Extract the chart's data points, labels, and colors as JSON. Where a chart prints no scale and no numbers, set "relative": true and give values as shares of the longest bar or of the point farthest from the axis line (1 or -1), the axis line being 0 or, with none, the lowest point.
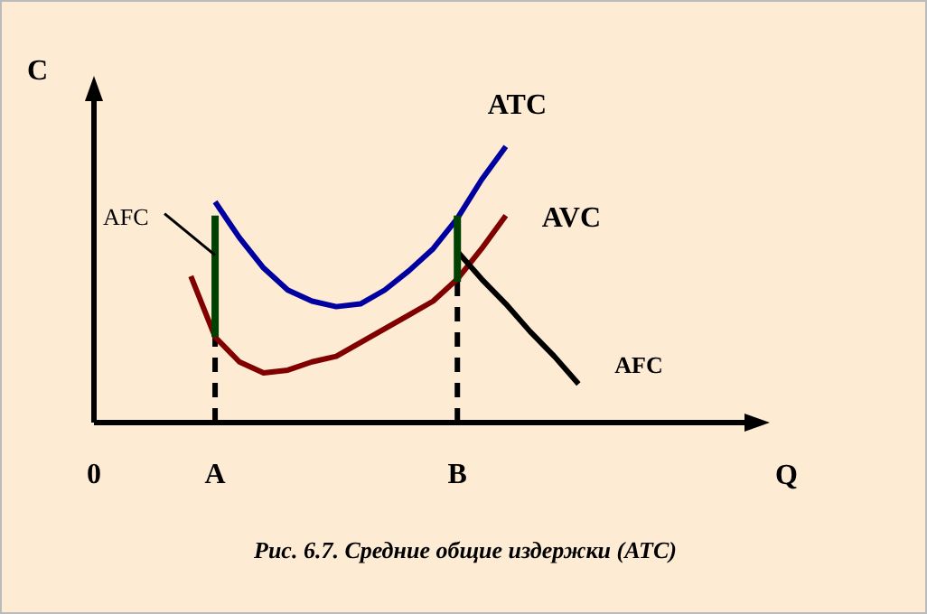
{
  "chart_data": {
    "type": "line",
    "title": "Рис. 6.7. Средние общие издержки (ATC)",
    "xlabel": "Q",
    "ylabel": "C",
    "relative": true,
    "marker": "none",
    "categories": [
      "0",
      null,
      null,
      null,
      null,
      "A",
      null,
      null,
      null,
      null,
      null,
      null,
      null,
      null,
      null,
      "B",
      null,
      null,
      null,
      null,
      null,
      null,
      null,
      null,
      null,
      null,
      null,
      null
    ],
    "series": [
      {
        "name": "ATC",
        "color": "#0000a0",
        "values": [
          null,
          null,
          null,
          null,
          null,
          0.8,
          0.67,
          0.56,
          0.48,
          0.44,
          0.42,
          0.43,
          0.48,
          0.55,
          0.63,
          0.74,
          0.88,
          1,
          null,
          null,
          null,
          null,
          null,
          null,
          null,
          null,
          null,
          null
        ]
      },
      {
        "name": "AVC",
        "color": "#800000",
        "values": [
          null,
          null,
          null,
          null,
          0.53,
          0.31,
          0.22,
          0.18,
          0.19,
          0.22,
          0.24,
          0.29,
          0.34,
          0.39,
          0.44,
          0.52,
          0.63,
          0.75,
          null,
          null,
          null,
          null,
          null,
          null,
          null,
          null,
          null,
          null
        ]
      },
      {
        "name": "AFC",
        "color": "#000000",
        "values": [
          null,
          null,
          null,
          null,
          null,
          null,
          null,
          null,
          null,
          null,
          null,
          null,
          null,
          null,
          null,
          0.62,
          0.52,
          0.43,
          0.33,
          0.24,
          0.14,
          null,
          null,
          null,
          null,
          null,
          null,
          null
        ]
      },
      {
        "color": "#004000",
        "x": [
          "A",
          "A"
        ],
        "values": [
          0.31,
          0.75
        ]
      },
      {
        "color": "#004000",
        "x": [
          "B",
          "B"
        ],
        "values": [
          0.51,
          0.75
        ]
      }
    ],
    "ref_lines": [
      {
        "axis": "x",
        "value": "A",
        "line_style": "dashed",
        "color": "#000000"
      },
      {
        "axis": "x",
        "value": "B",
        "line_style": "dashed",
        "color": "#000000"
      }
    ],
    "annotations": [
      {
        "text": "AFC",
        "x": "A",
        "y": 0.6
      }
    ]
  }
}
